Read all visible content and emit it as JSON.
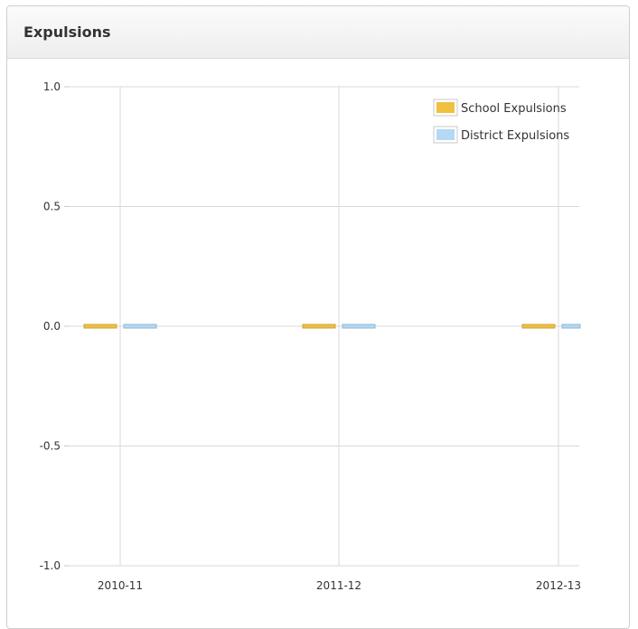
{
  "panel": {
    "title": "Expulsions"
  },
  "chart_data": {
    "type": "bar",
    "title": "",
    "xlabel": "",
    "ylabel": "",
    "categories": [
      "2010-11",
      "2011-12",
      "2012-13"
    ],
    "series": [
      {
        "name": "School Expulsions",
        "values": [
          0,
          0,
          0
        ],
        "color": "#f0c040",
        "stroke": "#c9a43c"
      },
      {
        "name": "District Expulsions",
        "values": [
          0,
          0,
          0
        ],
        "color": "#b3d9f5",
        "stroke": "#8fb6d2"
      }
    ],
    "ylim": [
      -1.0,
      1.0
    ],
    "yticks": [
      "1.0",
      "0.5",
      "0.0",
      "-0.5",
      "-1.0"
    ],
    "ytick_values": [
      1.0,
      0.5,
      0.0,
      -0.5,
      -1.0
    ],
    "grid": true,
    "legend_position": "top-right"
  }
}
